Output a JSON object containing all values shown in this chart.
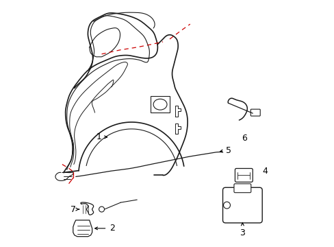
{
  "bg_color": "#ffffff",
  "line_color": "#1a1a1a",
  "red_color": "#cc0000",
  "figsize": [
    4.89,
    3.6
  ],
  "dpi": 100
}
